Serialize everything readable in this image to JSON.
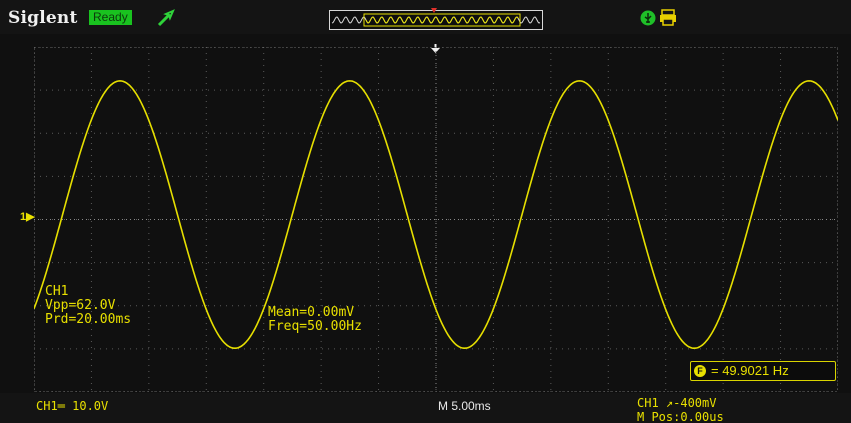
{
  "header": {
    "brand": "Siglent",
    "status": "Ready",
    "colors": {
      "status_bg": "#19c21f",
      "trace": "#e8e000"
    }
  },
  "icons": {
    "run_state": "green-arrow-icon",
    "usb": "usb-icon",
    "print": "printer-icon"
  },
  "channel_marker": "1",
  "measurements": {
    "channel": "CH1",
    "vpp": "Vpp=62.0V",
    "period": "Prd=20.00ms",
    "mean": "Mean=0.00mV",
    "frequency": "Freq=50.00Hz"
  },
  "counter": {
    "symbol": "F",
    "value": "= 49.9021 Hz"
  },
  "footer": {
    "channel_scale": "CH1═ 10.0V",
    "timebase": "M 5.00ms",
    "trigger": "CH1 ↗-400mV",
    "position": "M Pos:0.00us"
  },
  "waveform": {
    "type": "sine",
    "frequency_hz": 50,
    "vpp": 62.0,
    "time_per_div_ms": 5,
    "volts_per_div": 10
  }
}
